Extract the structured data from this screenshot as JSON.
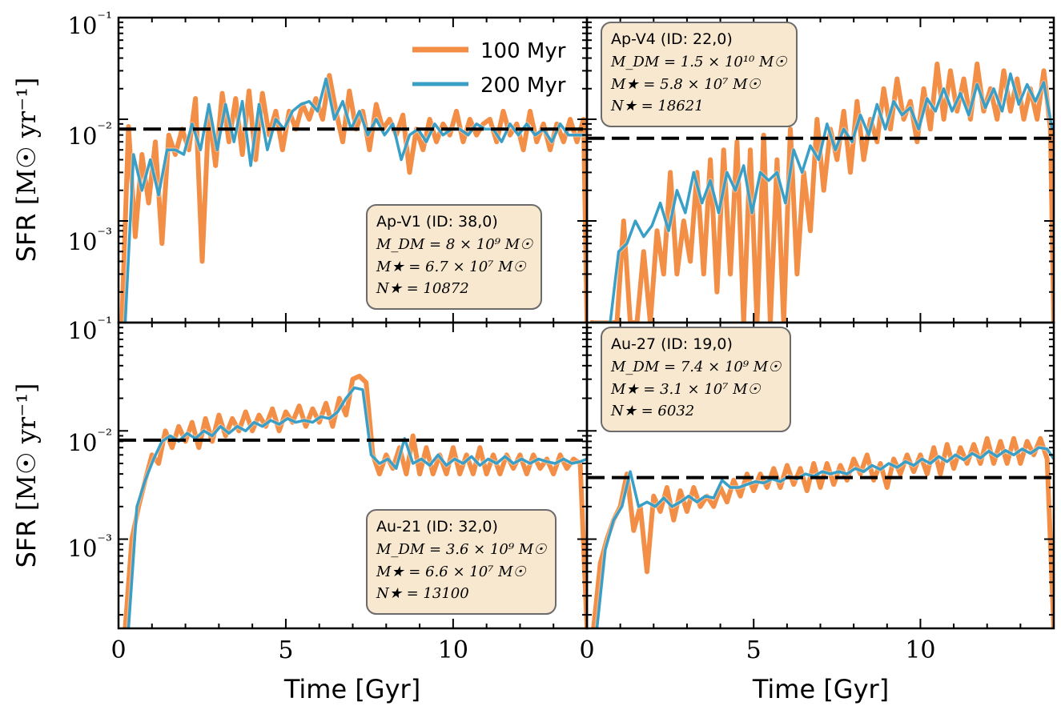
{
  "colors": {
    "series_100": "#f28e45",
    "series_200": "#3a9fc6",
    "median": "#000000",
    "infobox_bg": "#f8e8cf",
    "infobox_border": "#6b6b6b"
  },
  "legend": [
    {
      "name": "100 Myr",
      "color_key": "series_100"
    },
    {
      "name": "200 Myr",
      "color_key": "series_200"
    }
  ],
  "labels": {
    "xlabel": "Time [Gyr]",
    "ylabel_prefix": "SFR",
    "ylabel_unit": "[M☉ yr⁻¹]"
  },
  "chart_data": [
    {
      "type": "line",
      "position": "top-left",
      "info": {
        "title": "Ap-V1 (ID: 38,0)",
        "mdm": "M_DM = 8 × 10⁹ M☉",
        "mstar": "M★ = 6.7 × 10⁷ M☉",
        "nstar": "N★ = 10872"
      },
      "xlim": [
        0,
        14.0
      ],
      "ylim": [
        0.0001,
        0.1
      ],
      "yscale": "log",
      "xticks": [
        "0",
        "5",
        "10"
      ],
      "yticks": [
        "10⁻¹",
        "10⁻²",
        "10⁻³"
      ],
      "median": 0.008,
      "x100": [
        0.1,
        0.3,
        0.5,
        0.7,
        0.9,
        1.1,
        1.3,
        1.5,
        1.7,
        1.9,
        2.1,
        2.3,
        2.5,
        2.7,
        2.9,
        3.1,
        3.3,
        3.5,
        3.7,
        3.9,
        4.1,
        4.3,
        4.5,
        4.7,
        4.9,
        5.1,
        5.3,
        5.5,
        5.7,
        5.9,
        6.1,
        6.3,
        6.5,
        6.7,
        6.9,
        7.1,
        7.3,
        7.5,
        7.7,
        7.9,
        8.1,
        8.3,
        8.5,
        8.7,
        8.9,
        9.1,
        9.3,
        9.5,
        9.7,
        9.9,
        10.1,
        10.3,
        10.5,
        10.7,
        10.9,
        11.1,
        11.3,
        11.5,
        11.7,
        11.9,
        12.1,
        12.3,
        12.5,
        12.7,
        12.9,
        13.1,
        13.3,
        13.5,
        13.7,
        13.9,
        14.0
      ],
      "y100": [
        0.0001,
        0.0085,
        0.0007,
        0.0045,
        0.0015,
        0.006,
        0.0006,
        0.007,
        0.0045,
        0.008,
        0.005,
        0.016,
        0.0004,
        0.012,
        0.0035,
        0.018,
        0.006,
        0.016,
        0.0045,
        0.019,
        0.004,
        0.018,
        0.007,
        0.012,
        0.005,
        0.012,
        0.008,
        0.014,
        0.01,
        0.016,
        0.01,
        0.027,
        0.012,
        0.006,
        0.019,
        0.008,
        0.012,
        0.005,
        0.014,
        0.008,
        0.01,
        0.007,
        0.011,
        0.003,
        0.008,
        0.005,
        0.01,
        0.006,
        0.009,
        0.007,
        0.012,
        0.006,
        0.01,
        0.007,
        0.009,
        0.01,
        0.006,
        0.012,
        0.007,
        0.009,
        0.005,
        0.012,
        0.006,
        0.009,
        0.005,
        0.009,
        0.006,
        0.01,
        0.006,
        0.01,
        0.0001
      ],
      "x200": [
        0.2,
        0.45,
        0.7,
        0.95,
        1.2,
        1.45,
        1.7,
        1.95,
        2.2,
        2.45,
        2.7,
        2.95,
        3.2,
        3.45,
        3.7,
        3.95,
        4.2,
        4.45,
        4.7,
        4.95,
        5.2,
        5.45,
        5.7,
        5.95,
        6.2,
        6.45,
        6.7,
        6.95,
        7.2,
        7.45,
        7.7,
        7.95,
        8.2,
        8.45,
        8.7,
        8.95,
        9.2,
        9.45,
        9.7,
        9.95,
        10.2,
        10.45,
        10.7,
        10.95,
        11.2,
        11.45,
        11.7,
        11.95,
        12.2,
        12.45,
        12.7,
        12.95,
        13.2,
        13.45,
        13.7,
        13.95
      ],
      "y200": [
        0.0001,
        0.0045,
        0.002,
        0.004,
        0.0018,
        0.005,
        0.005,
        0.0045,
        0.009,
        0.005,
        0.014,
        0.005,
        0.014,
        0.006,
        0.015,
        0.0035,
        0.014,
        0.005,
        0.01,
        0.008,
        0.012,
        0.014,
        0.015,
        0.012,
        0.025,
        0.01,
        0.015,
        0.008,
        0.012,
        0.007,
        0.01,
        0.007,
        0.009,
        0.004,
        0.007,
        0.008,
        0.006,
        0.009,
        0.007,
        0.008,
        0.008,
        0.007,
        0.009,
        0.008,
        0.008,
        0.006,
        0.009,
        0.007,
        0.009,
        0.007,
        0.008,
        0.006,
        0.009,
        0.007,
        0.007,
        0.007
      ]
    },
    {
      "type": "line",
      "position": "top-right",
      "info": {
        "title": "Ap-V4 (ID: 22,0)",
        "mdm": "M_DM = 1.5 × 10¹⁰ M☉",
        "mstar": "M★ = 5.8 × 10⁷ M☉",
        "nstar": "N★ = 18621"
      },
      "xlim": [
        0,
        14.0
      ],
      "ylim": [
        0.0001,
        0.1
      ],
      "yscale": "log",
      "xticks": [
        "0",
        "5",
        "10"
      ],
      "yticks": [],
      "median": 0.0065,
      "x100": [
        0.1,
        0.3,
        0.5,
        0.7,
        0.9,
        1.1,
        1.3,
        1.5,
        1.7,
        1.9,
        2.1,
        2.3,
        2.5,
        2.7,
        2.9,
        3.1,
        3.3,
        3.5,
        3.7,
        3.9,
        4.1,
        4.3,
        4.5,
        4.7,
        4.9,
        5.1,
        5.3,
        5.5,
        5.7,
        5.9,
        6.1,
        6.3,
        6.5,
        6.7,
        6.9,
        7.1,
        7.3,
        7.5,
        7.7,
        7.9,
        8.1,
        8.3,
        8.5,
        8.7,
        8.9,
        9.1,
        9.3,
        9.5,
        9.7,
        9.9,
        10.1,
        10.3,
        10.5,
        10.7,
        10.9,
        11.1,
        11.3,
        11.5,
        11.7,
        11.9,
        12.1,
        12.3,
        12.5,
        12.7,
        12.9,
        13.1,
        13.3,
        13.5,
        13.7,
        13.9,
        14.0
      ],
      "y100": [
        0.0001,
        0.0001,
        0.0001,
        0.0001,
        0.0001,
        0.001,
        0.0001,
        0.0001,
        0.0005,
        0.0001,
        0.0008,
        0.0003,
        0.003,
        0.0003,
        0.001,
        0.0004,
        0.003,
        0.0003,
        0.004,
        0.0002,
        0.005,
        0.0003,
        0.006,
        0.0001,
        0.005,
        0.0001,
        0.007,
        0.0001,
        0.004,
        0.0001,
        0.008,
        0.0003,
        0.003,
        0.0008,
        0.01,
        0.002,
        0.008,
        0.004,
        0.012,
        0.003,
        0.015,
        0.004,
        0.01,
        0.006,
        0.02,
        0.008,
        0.025,
        0.01,
        0.015,
        0.006,
        0.02,
        0.008,
        0.035,
        0.01,
        0.03,
        0.012,
        0.025,
        0.01,
        0.035,
        0.012,
        0.02,
        0.01,
        0.03,
        0.012,
        0.025,
        0.01,
        0.02,
        0.01,
        0.03,
        0.008,
        0.0001
      ],
      "x200": [
        0.2,
        0.45,
        0.7,
        0.95,
        1.2,
        1.45,
        1.7,
        1.95,
        2.2,
        2.45,
        2.7,
        2.95,
        3.2,
        3.45,
        3.7,
        3.95,
        4.2,
        4.45,
        4.7,
        4.95,
        5.2,
        5.45,
        5.7,
        5.95,
        6.2,
        6.45,
        6.7,
        6.95,
        7.2,
        7.45,
        7.7,
        7.95,
        8.2,
        8.45,
        8.7,
        8.95,
        9.2,
        9.45,
        9.7,
        9.95,
        10.2,
        10.45,
        10.7,
        10.95,
        11.2,
        11.45,
        11.7,
        11.95,
        12.2,
        12.45,
        12.7,
        12.95,
        13.2,
        13.45,
        13.7,
        13.95
      ],
      "y200": [
        0.0001,
        0.0001,
        0.0001,
        0.0001,
        0.0001,
        0.0001,
        0.0001,
        0.0001,
        0.0001,
        0.0001,
        0.0001,
        0.0001,
        0.0001,
        0.0001,
        0.0001,
        0.0001,
        0.0001,
        0.0001,
        0.0001,
        0.0001,
        0.0001,
        0.0001,
        0.0001,
        0.0001,
        0.0001,
        0.0001,
        0.0001,
        0.0001,
        0.0001,
        0.0001,
        0.0001,
        0.0001,
        0.0001,
        0.0001,
        0.0001,
        0.0001,
        0.0001,
        0.0001,
        0.0001,
        0.0001,
        0.0001,
        0.0001,
        0.0001,
        0.0001,
        0.0001,
        0.0001,
        0.0001,
        0.0001,
        0.0001,
        0.0001,
        0.0001,
        0.0001,
        0.0001,
        0.0001,
        0.0001,
        0.0001
      ],
      "y200_actual": [
        0.0001,
        0.0001,
        0.0001,
        0.0005,
        0.0006,
        0.001,
        0.0007,
        0.0009,
        0.0015,
        0.0008,
        0.002,
        0.0012,
        0.003,
        0.0015,
        0.0025,
        0.0012,
        0.003,
        0.002,
        0.0035,
        0.0012,
        0.003,
        0.0025,
        0.003,
        0.0015,
        0.005,
        0.003,
        0.0055,
        0.004,
        0.009,
        0.005,
        0.008,
        0.006,
        0.011,
        0.007,
        0.014,
        0.008,
        0.015,
        0.011,
        0.013,
        0.008,
        0.016,
        0.012,
        0.02,
        0.012,
        0.018,
        0.011,
        0.022,
        0.013,
        0.02,
        0.012,
        0.028,
        0.014,
        0.022,
        0.015,
        0.023,
        0.008
      ]
    },
    {
      "type": "line",
      "position": "bottom-left",
      "info": {
        "title": "Au-21 (ID: 32,0)",
        "mdm": "M_DM = 3.6 × 10⁹ M☉",
        "mstar": "M★ = 6.6 × 10⁷ M☉",
        "nstar": "N★ = 13100"
      },
      "xlim": [
        0,
        14.0
      ],
      "ylim": [
        0.00015,
        0.1
      ],
      "yscale": "log",
      "xticks": [
        "0",
        "5",
        "10"
      ],
      "yticks": [
        "10⁻¹",
        "10⁻²",
        "10⁻³"
      ],
      "median": 0.0082,
      "x100": [
        0.2,
        0.4,
        0.6,
        0.8,
        1.0,
        1.2,
        1.4,
        1.6,
        1.8,
        2.0,
        2.2,
        2.4,
        2.6,
        2.8,
        3.0,
        3.2,
        3.4,
        3.6,
        3.8,
        4.0,
        4.2,
        4.4,
        4.6,
        4.8,
        5.0,
        5.2,
        5.4,
        5.6,
        5.8,
        6.0,
        6.2,
        6.4,
        6.6,
        6.8,
        7.0,
        7.2,
        7.4,
        7.6,
        7.8,
        8.0,
        8.2,
        8.4,
        8.6,
        8.8,
        9.0,
        9.2,
        9.4,
        9.6,
        9.8,
        10.0,
        10.2,
        10.4,
        10.6,
        10.8,
        11.0,
        11.2,
        11.4,
        11.6,
        11.8,
        12.0,
        12.2,
        12.4,
        12.6,
        12.8,
        13.0,
        13.2,
        13.4,
        13.6,
        13.8,
        14.0
      ],
      "y100": [
        0.00015,
        0.001,
        0.002,
        0.0035,
        0.006,
        0.005,
        0.01,
        0.007,
        0.011,
        0.008,
        0.012,
        0.007,
        0.013,
        0.008,
        0.014,
        0.009,
        0.013,
        0.01,
        0.015,
        0.01,
        0.014,
        0.011,
        0.016,
        0.01,
        0.015,
        0.012,
        0.017,
        0.011,
        0.016,
        0.012,
        0.018,
        0.011,
        0.02,
        0.014,
        0.03,
        0.032,
        0.028,
        0.006,
        0.004,
        0.006,
        0.0045,
        0.007,
        0.004,
        0.009,
        0.004,
        0.007,
        0.004,
        0.006,
        0.004,
        0.007,
        0.004,
        0.006,
        0.004,
        0.007,
        0.004,
        0.006,
        0.004,
        0.006,
        0.0045,
        0.006,
        0.004,
        0.006,
        0.0045,
        0.0055,
        0.004,
        0.006,
        0.0045,
        0.0055,
        0.005,
        0.00015
      ],
      "x200": [
        0.3,
        0.55,
        0.8,
        1.05,
        1.3,
        1.55,
        1.8,
        2.05,
        2.3,
        2.55,
        2.8,
        3.05,
        3.3,
        3.55,
        3.8,
        4.05,
        4.3,
        4.55,
        4.8,
        5.05,
        5.3,
        5.55,
        5.8,
        6.05,
        6.3,
        6.55,
        6.8,
        7.05,
        7.3,
        7.55,
        7.8,
        8.05,
        8.3,
        8.55,
        8.8,
        9.05,
        9.3,
        9.55,
        9.8,
        10.05,
        10.3,
        10.55,
        10.8,
        11.05,
        11.3,
        11.55,
        11.8,
        12.05,
        12.3,
        12.55,
        12.8,
        13.05,
        13.3,
        13.55,
        13.8,
        14.0
      ],
      "y200": [
        0.00015,
        0.002,
        0.0035,
        0.0055,
        0.008,
        0.009,
        0.008,
        0.0095,
        0.0085,
        0.01,
        0.009,
        0.011,
        0.0095,
        0.011,
        0.01,
        0.012,
        0.011,
        0.0125,
        0.0115,
        0.013,
        0.012,
        0.0125,
        0.012,
        0.0135,
        0.013,
        0.015,
        0.02,
        0.025,
        0.024,
        0.006,
        0.005,
        0.0055,
        0.0045,
        0.0085,
        0.005,
        0.0055,
        0.0048,
        0.006,
        0.0048,
        0.0055,
        0.005,
        0.0058,
        0.0048,
        0.0055,
        0.005,
        0.0058,
        0.005,
        0.0055,
        0.005,
        0.0055,
        0.0052,
        0.005,
        0.0055,
        0.005,
        0.0052,
        0.0055
      ]
    },
    {
      "type": "line",
      "position": "bottom-right",
      "info": {
        "title": "Au-27 (ID: 19,0)",
        "mdm": "M_DM = 7.4 × 10⁹ M☉",
        "mstar": "M★ = 3.1 × 10⁷ M☉",
        "nstar": "N★ = 6032"
      },
      "xlim": [
        0,
        14.0
      ],
      "ylim": [
        0.00015,
        0.1
      ],
      "yscale": "log",
      "xticks": [
        "0",
        "5",
        "10"
      ],
      "yticks": [],
      "median": 0.0037,
      "x100": [
        0.2,
        0.4,
        0.6,
        0.8,
        1.0,
        1.2,
        1.4,
        1.6,
        1.8,
        2.0,
        2.2,
        2.4,
        2.6,
        2.8,
        3.0,
        3.2,
        3.4,
        3.6,
        3.8,
        4.0,
        4.2,
        4.4,
        4.6,
        4.8,
        5.0,
        5.2,
        5.4,
        5.6,
        5.8,
        6.0,
        6.2,
        6.4,
        6.6,
        6.8,
        7.0,
        7.2,
        7.4,
        7.6,
        7.8,
        8.0,
        8.2,
        8.4,
        8.6,
        8.8,
        9.0,
        9.2,
        9.4,
        9.6,
        9.8,
        10.0,
        10.2,
        10.4,
        10.6,
        10.8,
        11.0,
        11.2,
        11.4,
        11.6,
        11.8,
        12.0,
        12.2,
        12.4,
        12.6,
        12.8,
        13.0,
        13.2,
        13.4,
        13.6,
        13.8,
        14.0
      ],
      "y100": [
        0.00015,
        0.0006,
        0.001,
        0.0015,
        0.002,
        0.004,
        0.0012,
        0.002,
        0.0005,
        0.0025,
        0.0018,
        0.003,
        0.0015,
        0.0028,
        0.0018,
        0.003,
        0.002,
        0.0025,
        0.002,
        0.003,
        0.0022,
        0.0035,
        0.0025,
        0.004,
        0.0028,
        0.004,
        0.003,
        0.0045,
        0.003,
        0.0048,
        0.0032,
        0.0045,
        0.0028,
        0.005,
        0.003,
        0.005,
        0.0032,
        0.0048,
        0.0035,
        0.0055,
        0.004,
        0.006,
        0.0035,
        0.005,
        0.003,
        0.0055,
        0.004,
        0.006,
        0.0042,
        0.006,
        0.004,
        0.007,
        0.004,
        0.0075,
        0.0045,
        0.007,
        0.005,
        0.0075,
        0.005,
        0.0085,
        0.005,
        0.008,
        0.005,
        0.0085,
        0.005,
        0.008,
        0.006,
        0.0085,
        0.0055,
        0.00015
      ],
      "x200": [
        0.3,
        0.55,
        0.8,
        1.05,
        1.3,
        1.55,
        1.8,
        2.05,
        2.3,
        2.55,
        2.8,
        3.05,
        3.3,
        3.55,
        3.8,
        4.05,
        4.3,
        4.55,
        4.8,
        5.05,
        5.3,
        5.55,
        5.8,
        6.05,
        6.3,
        6.55,
        6.8,
        7.05,
        7.3,
        7.55,
        7.8,
        8.05,
        8.3,
        8.55,
        8.8,
        9.05,
        9.3,
        9.55,
        9.8,
        10.05,
        10.3,
        10.55,
        10.8,
        11.05,
        11.3,
        11.55,
        11.8,
        12.05,
        12.3,
        12.55,
        12.8,
        13.05,
        13.3,
        13.55,
        13.8,
        14.0
      ],
      "y200": [
        0.00015,
        0.0008,
        0.0015,
        0.002,
        0.0042,
        0.002,
        0.0022,
        0.002,
        0.0024,
        0.002,
        0.0022,
        0.0025,
        0.0022,
        0.0025,
        0.0024,
        0.0035,
        0.003,
        0.003,
        0.0032,
        0.0034,
        0.0033,
        0.0036,
        0.0034,
        0.0038,
        0.0036,
        0.004,
        0.0038,
        0.0042,
        0.004,
        0.0042,
        0.004,
        0.0045,
        0.0042,
        0.0048,
        0.0044,
        0.005,
        0.0046,
        0.0052,
        0.0048,
        0.0055,
        0.005,
        0.0058,
        0.0052,
        0.006,
        0.0054,
        0.0062,
        0.0056,
        0.0065,
        0.0058,
        0.0066,
        0.006,
        0.0068,
        0.0062,
        0.007,
        0.0068,
        0.0055
      ]
    }
  ]
}
